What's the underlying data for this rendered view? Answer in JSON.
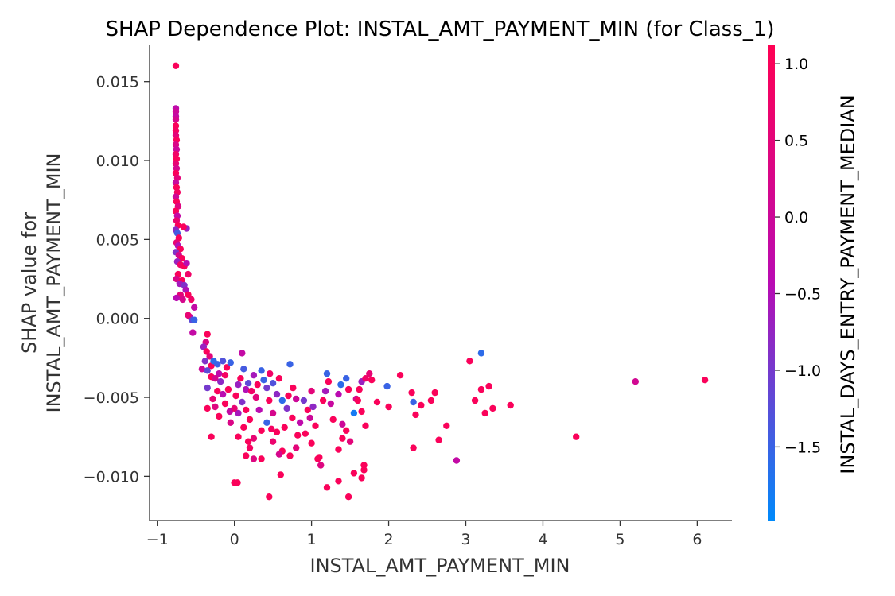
{
  "chart_data": {
    "type": "scatter",
    "title": "SHAP Dependence Plot: INSTAL_AMT_PAYMENT_MIN (for Class_1)",
    "xlabel": "INSTAL_AMT_PAYMENT_MIN",
    "ylabel_lines": [
      "SHAP value for",
      "INSTAL_AMT_PAYMENT_MIN"
    ],
    "xlim": [
      -1.1,
      6.45
    ],
    "ylim": [
      -0.0128,
      0.0173
    ],
    "xticks": [
      -1,
      0,
      1,
      2,
      3,
      4,
      5,
      6
    ],
    "xtick_labels": [
      "−1",
      "0",
      "1",
      "2",
      "3",
      "4",
      "5",
      "6"
    ],
    "yticks": [
      0.015,
      0.01,
      0.005,
      0.0,
      -0.005,
      -0.01
    ],
    "ytick_labels": [
      "0.015",
      "0.010",
      "0.005",
      "0.000",
      "−0.005",
      "−0.010"
    ],
    "grid": false,
    "colorbar": {
      "label": "INSTAL_DAYS_ENTRY_PAYMENT_MEDIAN",
      "range": [
        -1.98,
        1.12
      ],
      "ticks": [
        1.0,
        0.5,
        0.0,
        -0.5,
        -1.0,
        -1.5
      ],
      "tick_labels": [
        "1.0",
        "0.5",
        "0.0",
        "−0.5",
        "−1.0",
        "−1.5"
      ],
      "color_low": "#008afb",
      "color_mid": "#b90bb3",
      "color_high": "#ff0153"
    },
    "points": [
      [
        -0.76,
        0.016,
        1.0
      ],
      [
        -0.76,
        0.0133,
        -0.3
      ],
      [
        -0.76,
        0.0131,
        0.0
      ],
      [
        -0.76,
        0.0128,
        -0.2
      ],
      [
        -0.76,
        0.0126,
        0.2
      ],
      [
        -0.76,
        0.0122,
        1.0
      ],
      [
        -0.76,
        0.0119,
        0.9
      ],
      [
        -0.76,
        0.0116,
        0.5
      ],
      [
        -0.75,
        0.0113,
        1.0
      ],
      [
        -0.76,
        0.011,
        0.3
      ],
      [
        -0.75,
        0.0107,
        0.0
      ],
      [
        -0.76,
        0.0104,
        0.8
      ],
      [
        -0.75,
        0.0101,
        1.0
      ],
      [
        -0.76,
        0.0098,
        0.6
      ],
      [
        -0.75,
        0.0095,
        0.2
      ],
      [
        -0.76,
        0.0092,
        1.0
      ],
      [
        -0.74,
        0.0089,
        0.5
      ],
      [
        -0.76,
        0.0086,
        -0.1
      ],
      [
        -0.75,
        0.0083,
        1.0
      ],
      [
        -0.74,
        0.008,
        0.9
      ],
      [
        -0.76,
        0.0077,
        0.0
      ],
      [
        -0.75,
        0.0074,
        1.0
      ],
      [
        -0.73,
        0.0071,
        0.4
      ],
      [
        -0.76,
        0.0068,
        1.0
      ],
      [
        -0.74,
        0.0065,
        -0.2
      ],
      [
        -0.75,
        0.0062,
        0.7
      ],
      [
        -0.73,
        0.0059,
        1.0
      ],
      [
        -0.76,
        0.0056,
        -0.8
      ],
      [
        -0.74,
        0.0054,
        -1.4
      ],
      [
        -0.72,
        0.0051,
        1.0
      ],
      [
        -0.75,
        0.0048,
        0.6
      ],
      [
        -0.73,
        0.0046,
        -0.5
      ],
      [
        -0.7,
        0.0044,
        1.0
      ],
      [
        -0.76,
        0.0042,
        -0.9
      ],
      [
        -0.72,
        0.004,
        0.2
      ],
      [
        -0.68,
        0.0038,
        1.0
      ],
      [
        -0.74,
        0.0036,
        -0.7
      ],
      [
        -0.7,
        0.0034,
        0.8
      ],
      [
        -0.65,
        0.0033,
        1.0
      ],
      [
        -0.62,
        0.0035,
        -0.4
      ],
      [
        -0.6,
        0.0028,
        0.8
      ],
      [
        -0.73,
        0.0028,
        1.0
      ],
      [
        -0.75,
        0.0025,
        0.3
      ],
      [
        -0.68,
        0.0024,
        1.0
      ],
      [
        -0.71,
        0.0022,
        -0.6
      ],
      [
        -0.65,
        0.0021,
        -0.9
      ],
      [
        -0.63,
        0.0018,
        -0.5
      ],
      [
        -0.6,
        0.0015,
        1.0
      ],
      [
        -0.7,
        0.0015,
        0.5
      ],
      [
        -0.67,
        0.0012,
        0.2
      ],
      [
        -0.56,
        0.0012,
        0.8
      ],
      [
        -0.52,
        0.0007,
        -0.2
      ],
      [
        -0.75,
        0.0013,
        -0.4
      ],
      [
        -0.58,
        0.0001,
        -0.3
      ],
      [
        -0.55,
        -0.0001,
        -1.2
      ],
      [
        -0.52,
        -0.0001,
        -1.5
      ],
      [
        -0.6,
        0.0002,
        0.6
      ],
      [
        -0.54,
        -0.0009,
        -0.2
      ],
      [
        -0.62,
        0.0057,
        -0.7
      ],
      [
        -0.66,
        0.0058,
        1.0
      ],
      [
        -0.35,
        -0.001,
        1.0
      ],
      [
        -0.37,
        -0.0015,
        0.3
      ],
      [
        -0.4,
        -0.0018,
        -0.7
      ],
      [
        -0.36,
        -0.0021,
        1.0
      ],
      [
        -0.32,
        -0.0024,
        0.5
      ],
      [
        -0.38,
        -0.0027,
        -0.9
      ],
      [
        -0.3,
        -0.003,
        1.0
      ],
      [
        -0.42,
        -0.0032,
        0.0
      ],
      [
        -0.35,
        -0.0033,
        -1.2
      ],
      [
        -0.27,
        -0.0027,
        -1.6
      ],
      [
        -0.22,
        -0.0029,
        -1.5
      ],
      [
        -0.2,
        -0.0035,
        -0.3
      ],
      [
        -0.15,
        -0.0027,
        -1.3
      ],
      [
        -0.1,
        -0.0031,
        1.0
      ],
      [
        -0.05,
        -0.0028,
        -1.5
      ],
      [
        -0.3,
        -0.0037,
        1.0
      ],
      [
        -0.25,
        -0.0038,
        0.2
      ],
      [
        -0.18,
        -0.004,
        -0.8
      ],
      [
        -0.12,
        -0.0036,
        0.9
      ],
      [
        -0.35,
        -0.0044,
        -1.0
      ],
      [
        -0.22,
        -0.0046,
        1.0
      ],
      [
        -0.28,
        -0.0051,
        0.6
      ],
      [
        -0.15,
        -0.0048,
        -0.4
      ],
      [
        -0.08,
        -0.0045,
        1.0
      ],
      [
        -0.35,
        -0.0057,
        1.0
      ],
      [
        -0.25,
        -0.0056,
        0.4
      ],
      [
        -0.12,
        -0.0054,
        1.0
      ],
      [
        -0.06,
        -0.0059,
        -0.2
      ],
      [
        -0.2,
        -0.0062,
        1.0
      ],
      [
        -0.05,
        -0.0066,
        0.3
      ],
      [
        -0.3,
        -0.0075,
        1.0
      ],
      [
        0.05,
        -0.0042,
        -0.7
      ],
      [
        0.1,
        -0.0022,
        -0.2
      ],
      [
        0.12,
        -0.0032,
        -1.4
      ],
      [
        0.08,
        -0.0038,
        1.0
      ],
      [
        0.15,
        -0.0045,
        -0.5
      ],
      [
        0.02,
        -0.0049,
        1.0
      ],
      [
        0.18,
        -0.0041,
        -1.2
      ],
      [
        0.22,
        -0.0046,
        0.8
      ],
      [
        0.1,
        -0.0053,
        -0.9
      ],
      [
        0.25,
        -0.0036,
        -0.6
      ],
      [
        0.3,
        -0.0042,
        1.0
      ],
      [
        0.35,
        -0.0033,
        -1.5
      ],
      [
        0.28,
        -0.005,
        0.5
      ],
      [
        0.15,
        -0.0058,
        1.0
      ],
      [
        0.05,
        -0.006,
        -0.6
      ],
      [
        0.2,
        -0.0064,
        1.0
      ],
      [
        0.0,
        -0.0057,
        0.6
      ],
      [
        0.12,
        -0.0069,
        1.0
      ],
      [
        0.32,
        -0.0058,
        -0.4
      ],
      [
        0.38,
        -0.0039,
        -1.5
      ],
      [
        0.42,
        -0.0044,
        -1.0
      ],
      [
        0.46,
        -0.0035,
        0.8
      ],
      [
        0.5,
        -0.0041,
        -1.3
      ],
      [
        0.45,
        -0.0052,
        1.0
      ],
      [
        0.55,
        -0.0048,
        -0.8
      ],
      [
        0.58,
        -0.0038,
        1.0
      ],
      [
        0.62,
        -0.0052,
        -1.6
      ],
      [
        0.5,
        -0.006,
        0.2
      ],
      [
        0.42,
        -0.0066,
        -1.5
      ],
      [
        0.35,
        -0.0071,
        1.0
      ],
      [
        0.25,
        -0.0076,
        0.6
      ],
      [
        0.18,
        -0.0078,
        1.0
      ],
      [
        0.05,
        -0.0075,
        1.0
      ],
      [
        0.2,
        -0.0082,
        0.9
      ],
      [
        0.15,
        -0.0087,
        1.0
      ],
      [
        0.25,
        -0.0089,
        0.4
      ],
      [
        0.35,
        -0.0089,
        1.0
      ],
      [
        0.48,
        -0.007,
        0.9
      ],
      [
        0.55,
        -0.0072,
        1.0
      ],
      [
        0.5,
        -0.0078,
        0.7
      ],
      [
        0.62,
        -0.0084,
        1.0
      ],
      [
        0.58,
        -0.0086,
        0.2
      ],
      [
        0.65,
        -0.0069,
        1.0
      ],
      [
        0.7,
        -0.0049,
        1.0
      ],
      [
        0.72,
        -0.0029,
        -1.5
      ],
      [
        0.76,
        -0.0044,
        1.0
      ],
      [
        0.8,
        -0.0051,
        0.0
      ],
      [
        0.68,
        -0.0057,
        -0.9
      ],
      [
        0.75,
        -0.0063,
        1.0
      ],
      [
        0.82,
        -0.0074,
        1.0
      ],
      [
        0.72,
        -0.0087,
        1.0
      ],
      [
        0.8,
        -0.0082,
        0.5
      ],
      [
        0.85,
        -0.0066,
        -0.3
      ],
      [
        0.9,
        -0.0052,
        -1.0
      ],
      [
        0.95,
        -0.0058,
        1.0
      ],
      [
        1.0,
        -0.0046,
        0.5
      ],
      [
        1.02,
        -0.0056,
        -0.8
      ],
      [
        0.98,
        -0.0063,
        0.0
      ],
      [
        1.05,
        -0.0068,
        1.0
      ],
      [
        0.92,
        -0.0073,
        1.0
      ],
      [
        1.0,
        -0.0079,
        1.0
      ],
      [
        1.08,
        -0.0089,
        1.0
      ],
      [
        1.12,
        -0.0093,
        0.4
      ],
      [
        1.15,
        -0.0052,
        1.0
      ],
      [
        1.18,
        -0.0046,
        -0.6
      ],
      [
        1.2,
        -0.0035,
        -1.5
      ],
      [
        1.22,
        -0.004,
        1.0
      ],
      [
        1.25,
        -0.0054,
        -0.1
      ],
      [
        1.28,
        -0.0064,
        1.0
      ],
      [
        1.35,
        -0.0048,
        -0.4
      ],
      [
        1.38,
        -0.0042,
        -1.6
      ],
      [
        1.4,
        -0.0067,
        0.0
      ],
      [
        1.45,
        -0.0071,
        1.0
      ],
      [
        1.5,
        -0.0078,
        0.5
      ],
      [
        1.35,
        -0.0083,
        1.0
      ],
      [
        1.4,
        -0.0076,
        1.0
      ],
      [
        1.55,
        -0.006,
        -1.8
      ],
      [
        1.48,
        -0.0045,
        1.0
      ],
      [
        1.58,
        -0.0051,
        0.2
      ],
      [
        1.62,
        -0.0045,
        1.0
      ],
      [
        1.65,
        -0.004,
        -0.7
      ],
      [
        1.7,
        -0.0038,
        0.8
      ],
      [
        1.75,
        -0.0035,
        0.6
      ],
      [
        1.78,
        -0.0039,
        1.0
      ],
      [
        1.45,
        -0.0038,
        -1.5
      ],
      [
        1.6,
        -0.0052,
        1.0
      ],
      [
        1.65,
        -0.0059,
        1.0
      ],
      [
        1.7,
        -0.0068,
        1.0
      ],
      [
        1.68,
        -0.0093,
        1.0
      ],
      [
        1.68,
        -0.0096,
        1.0
      ],
      [
        1.65,
        -0.0101,
        1.0
      ],
      [
        1.55,
        -0.0098,
        1.0
      ],
      [
        1.48,
        -0.0113,
        1.0
      ],
      [
        1.35,
        -0.0103,
        1.0
      ],
      [
        1.2,
        -0.0107,
        1.0
      ],
      [
        1.1,
        -0.0088,
        1.0
      ],
      [
        0.6,
        -0.0099,
        1.0
      ],
      [
        0.45,
        -0.0113,
        1.0
      ],
      [
        0.0,
        -0.0104,
        1.0
      ],
      [
        0.04,
        -0.0104,
        1.0
      ],
      [
        1.85,
        -0.0053,
        1.0
      ],
      [
        1.98,
        -0.0043,
        -1.5
      ],
      [
        2.0,
        -0.0056,
        1.0
      ],
      [
        2.15,
        -0.0036,
        1.0
      ],
      [
        2.3,
        -0.0047,
        1.0
      ],
      [
        2.32,
        -0.0053,
        -1.5
      ],
      [
        2.35,
        -0.0061,
        1.0
      ],
      [
        2.32,
        -0.0082,
        1.0
      ],
      [
        2.42,
        -0.0055,
        1.0
      ],
      [
        2.55,
        -0.0052,
        1.0
      ],
      [
        2.6,
        -0.0047,
        1.0
      ],
      [
        2.65,
        -0.0077,
        1.0
      ],
      [
        2.75,
        -0.0068,
        1.0
      ],
      [
        2.88,
        -0.009,
        -0.2
      ],
      [
        3.05,
        -0.0027,
        1.0
      ],
      [
        3.2,
        -0.0022,
        -1.6
      ],
      [
        3.12,
        -0.0052,
        1.0
      ],
      [
        3.2,
        -0.0045,
        1.0
      ],
      [
        3.25,
        -0.006,
        1.0
      ],
      [
        3.3,
        -0.0043,
        1.0
      ],
      [
        3.35,
        -0.0057,
        1.0
      ],
      [
        3.58,
        -0.0055,
        1.0
      ],
      [
        4.43,
        -0.0075,
        1.0
      ],
      [
        5.2,
        -0.004,
        0.1
      ],
      [
        6.1,
        -0.0039,
        1.0
      ]
    ]
  }
}
